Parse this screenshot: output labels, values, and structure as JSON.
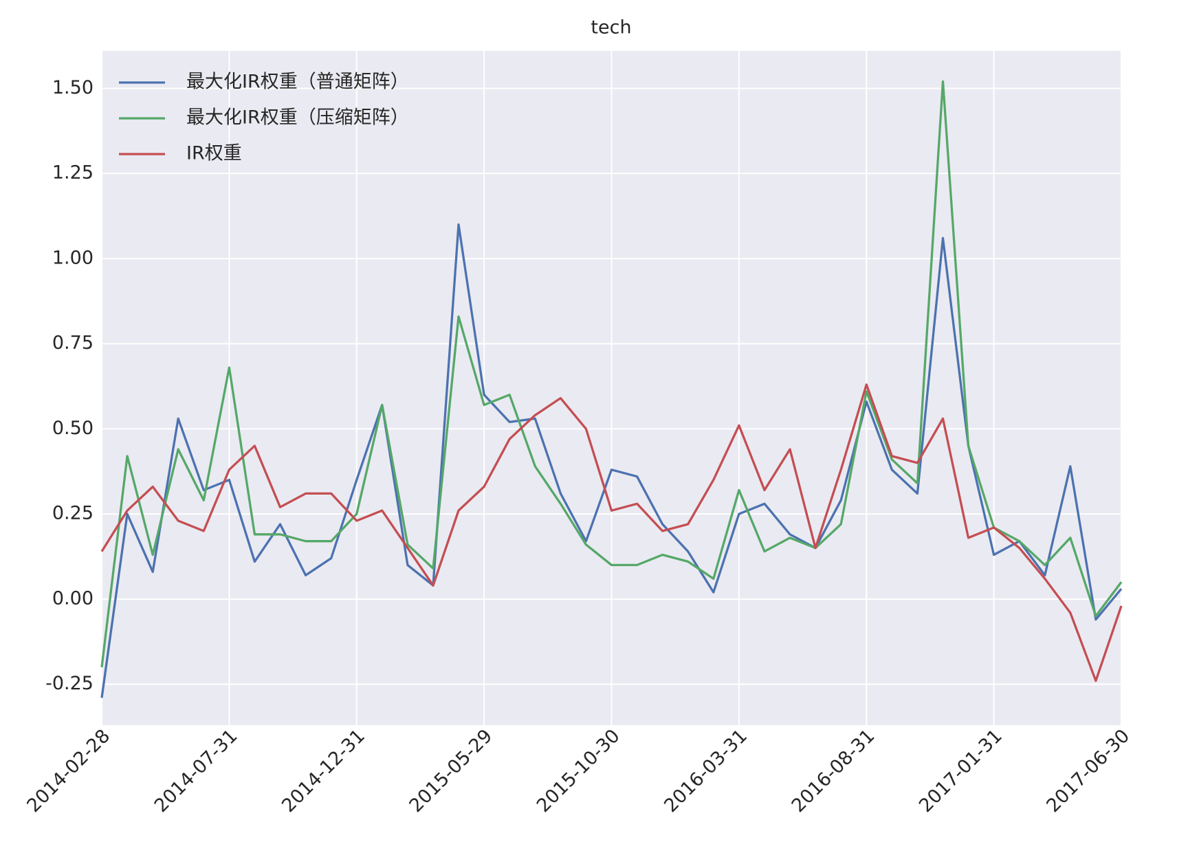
{
  "chart_data": {
    "type": "line",
    "title": "tech",
    "categories": [
      "2014-02-28",
      null,
      null,
      null,
      null,
      "2014-07-31",
      null,
      null,
      null,
      null,
      "2014-12-31",
      null,
      null,
      null,
      null,
      "2015-05-29",
      null,
      null,
      null,
      null,
      "2015-10-30",
      null,
      null,
      null,
      null,
      "2016-03-31",
      null,
      null,
      null,
      null,
      "2016-08-31",
      null,
      null,
      null,
      null,
      "2017-01-31",
      null,
      null,
      null,
      null,
      "2017-06-30"
    ],
    "series": [
      {
        "name": "最大化IR权重（普通矩阵）",
        "color": "#4c72b0",
        "values": [
          -0.29,
          0.25,
          0.08,
          0.53,
          0.32,
          0.35,
          0.11,
          0.22,
          0.07,
          0.12,
          0.35,
          0.57,
          0.1,
          0.04,
          1.1,
          0.6,
          0.52,
          0.53,
          0.31,
          0.17,
          0.38,
          0.36,
          0.22,
          0.14,
          0.02,
          0.25,
          0.28,
          0.19,
          0.15,
          0.29,
          0.58,
          0.38,
          0.31,
          1.06,
          0.45,
          0.13,
          0.17,
          0.07,
          0.39,
          -0.06,
          0.03
        ]
      },
      {
        "name": "最大化IR权重（压缩矩阵）",
        "color": "#55a868",
        "values": [
          -0.2,
          0.42,
          0.13,
          0.44,
          0.29,
          0.68,
          0.19,
          0.19,
          0.17,
          0.17,
          0.25,
          0.57,
          0.16,
          0.09,
          0.83,
          0.57,
          0.6,
          0.39,
          0.28,
          0.16,
          0.1,
          0.1,
          0.13,
          0.11,
          0.06,
          0.32,
          0.14,
          0.18,
          0.15,
          0.22,
          0.61,
          0.41,
          0.34,
          1.52,
          0.45,
          0.21,
          0.17,
          0.1,
          0.18,
          -0.05,
          0.05
        ]
      },
      {
        "name": "IR权重",
        "color": "#c44e52",
        "values": [
          0.14,
          0.26,
          0.33,
          0.23,
          0.2,
          0.38,
          0.45,
          0.27,
          0.31,
          0.31,
          0.23,
          0.26,
          0.15,
          0.04,
          0.26,
          0.33,
          0.47,
          0.54,
          0.59,
          0.5,
          0.26,
          0.28,
          0.2,
          0.22,
          0.35,
          0.51,
          0.32,
          0.44,
          0.15,
          0.38,
          0.63,
          0.42,
          0.4,
          0.53,
          0.18,
          0.21,
          0.15,
          0.06,
          -0.04,
          -0.24,
          -0.02
        ]
      }
    ],
    "ylim": [
      -0.37,
      1.61
    ],
    "yticks": [
      {
        "value": -0.25,
        "label": "-0.25"
      },
      {
        "value": 0,
        "label": "0.00"
      },
      0.25,
      {
        "value": 0.5,
        "label": "0.50"
      },
      0.75,
      {
        "value": 1,
        "label": "1.00"
      },
      1.25,
      {
        "value": 1.5,
        "label": "1.50"
      }
    ],
    "grid": true,
    "legend": "upper left"
  }
}
